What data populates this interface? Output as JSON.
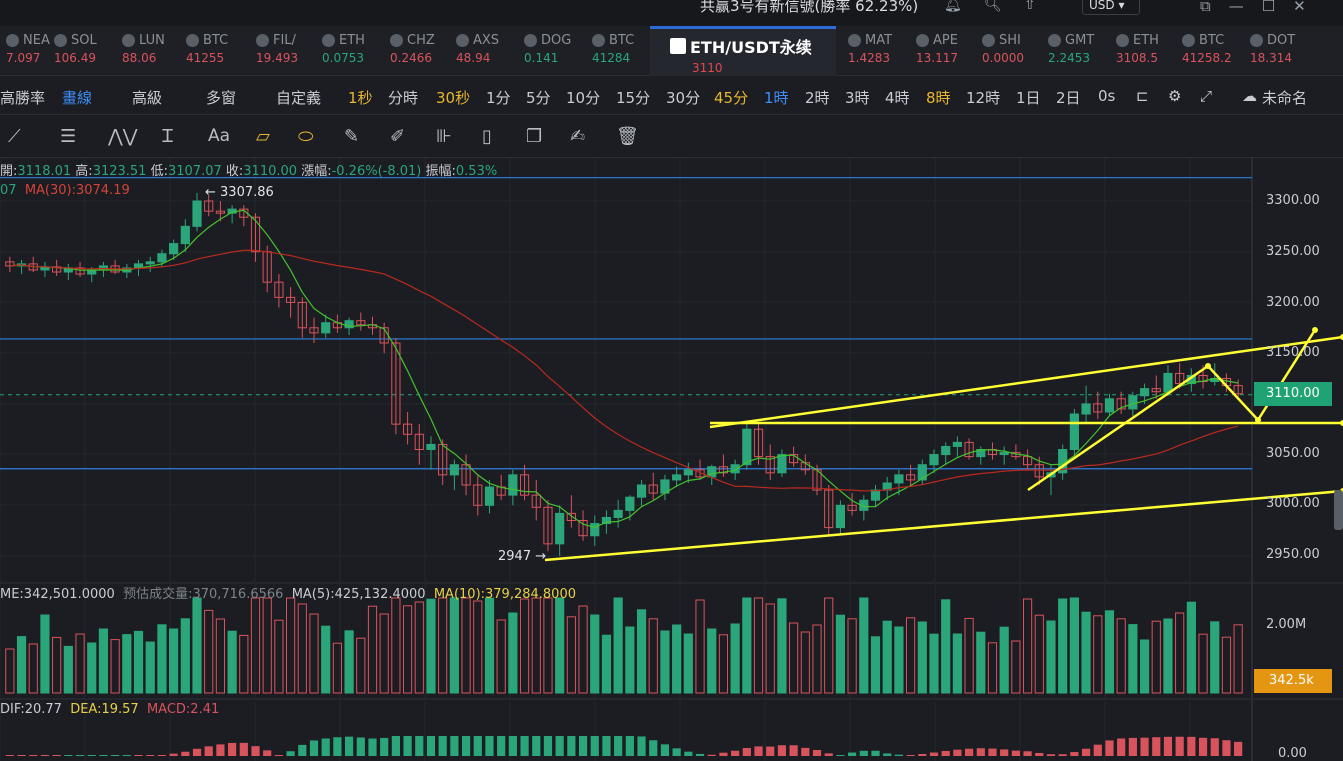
{
  "topbar": {
    "notice": "共赢3号有新信號(勝率 62.23%)",
    "currency": "USD",
    "icons": [
      "bell-icon",
      "search-icon",
      "upload-icon"
    ],
    "window_controls": [
      "popout-icon",
      "minimize-icon",
      "maximize-icon",
      "close-icon"
    ]
  },
  "tickers": [
    {
      "symbol": "NEA",
      "price": "7.097",
      "dir": "dn"
    },
    {
      "symbol": "SOL",
      "price": "106.49",
      "dir": "dn"
    },
    {
      "symbol": "LUN",
      "price": "88.06",
      "dir": "dn"
    },
    {
      "symbol": "BTC",
      "price": "41255",
      "dir": "dn"
    },
    {
      "symbol": "FIL/",
      "price": "19.493",
      "dir": "dn"
    },
    {
      "symbol": "ETH",
      "price": "0.0753",
      "dir": "up"
    },
    {
      "symbol": "CHZ",
      "price": "0.2466",
      "dir": "dn"
    },
    {
      "symbol": "AXS",
      "price": "48.94",
      "dir": "dn"
    },
    {
      "symbol": "DOG",
      "price": "0.141",
      "dir": "up"
    },
    {
      "symbol": "BTC",
      "price": "41284",
      "dir": "up"
    },
    {
      "symbol": "ETH/USDT永续",
      "price": "3110",
      "dir": "dn",
      "active": true
    },
    {
      "symbol": "MAT",
      "price": "1.4283",
      "dir": "dn"
    },
    {
      "symbol": "APE",
      "price": "13.117",
      "dir": "dn"
    },
    {
      "symbol": "SHI",
      "price": "0.0000",
      "dir": "dn"
    },
    {
      "symbol": "GMT",
      "price": "2.2453",
      "dir": "up"
    },
    {
      "symbol": "ETH",
      "price": "3108.5",
      "dir": "dn"
    },
    {
      "symbol": "BTC",
      "price": "41258.2",
      "dir": "dn"
    },
    {
      "symbol": "DOT",
      "price": "18.314",
      "dir": "dn"
    }
  ],
  "timeframe_bar": {
    "items": [
      "高勝率",
      "畫線",
      "高級",
      "多窗",
      "自定義",
      "1秒",
      "分時",
      "30秒",
      "1分",
      "5分",
      "10分",
      "15分",
      "30分",
      "45分",
      "1時",
      "2時",
      "3時",
      "4時",
      "8時",
      "12時",
      "1日",
      "2日",
      "0s",
      "未命名"
    ],
    "selected": "1時",
    "highlighted": [
      "1秒",
      "30秒",
      "45分",
      "8時"
    ]
  },
  "drawing_tools": [
    "line-tool-icon",
    "hlines-tool-icon",
    "wave-tool-icon",
    "text-tool-icon",
    "Aa",
    "ruler-icon",
    "magnet-icon",
    "pencil-icon",
    "brush-icon",
    "measure-icon",
    "lock-icon",
    "copy-icon",
    "edit-icon",
    "trash-icon"
  ],
  "ohlc": {
    "open_label": "開:",
    "open": "3118.01",
    "high_label": "高:",
    "high": "3123.51",
    "low_label": "低:",
    "low": "3107.07",
    "close_label": "收:",
    "close": "3110.00",
    "change_label": "漲幅:",
    "change": "-0.26%(-8.01)",
    "amp_label": "振幅:",
    "amp": "0.53%"
  },
  "ma": {
    "ma_short_value": "07",
    "ma30_label": "MA(30):3074.19"
  },
  "price_markers": {
    "high_marker": "← 3307.86",
    "low_marker": "2947 →"
  },
  "yaxis_labels": [
    "3300.00",
    "3250.00",
    "3200.00",
    "3150.00",
    "3100.00",
    "3050.00",
    "3000.00",
    "2950.00"
  ],
  "last_price": "3110.00",
  "volume": {
    "vol": "ME:342,501.0000",
    "est": "预估成交量:370,716.6566",
    "ma5": "MA(5):425,132.4000",
    "ma10": "MA(10):379,284.8000",
    "axis_label": "2.00M",
    "last": "342.5k"
  },
  "macd": {
    "dif": "DIF:20.77",
    "dea": "DEA:19.57",
    "macd": "MACD:2.41",
    "axis_label": "0.00"
  },
  "colors": {
    "up": "#2aa67a",
    "down": "#d9535c",
    "trend": "#ffff33",
    "level": "#2f7fe0",
    "ma_short": "#44c22e",
    "ma30": "#b8291f"
  },
  "chart_data": {
    "type": "candlestick",
    "ylim": [
      2900,
      3330
    ],
    "candles": [
      [
        3240,
        3245,
        3230,
        3236
      ],
      [
        3236,
        3242,
        3228,
        3238
      ],
      [
        3238,
        3245,
        3230,
        3232
      ],
      [
        3232,
        3240,
        3225,
        3235
      ],
      [
        3235,
        3242,
        3226,
        3230
      ],
      [
        3230,
        3238,
        3222,
        3234
      ],
      [
        3234,
        3240,
        3225,
        3228
      ],
      [
        3228,
        3235,
        3220,
        3232
      ],
      [
        3232,
        3240,
        3225,
        3236
      ],
      [
        3236,
        3242,
        3228,
        3230
      ],
      [
        3230,
        3238,
        3224,
        3234
      ],
      [
        3234,
        3242,
        3226,
        3238
      ],
      [
        3238,
        3245,
        3230,
        3240
      ],
      [
        3240,
        3252,
        3235,
        3248
      ],
      [
        3248,
        3262,
        3242,
        3258
      ],
      [
        3258,
        3282,
        3250,
        3275
      ],
      [
        3275,
        3308,
        3270,
        3300
      ],
      [
        3300,
        3306,
        3285,
        3290
      ],
      [
        3290,
        3300,
        3280,
        3288
      ],
      [
        3288,
        3296,
        3278,
        3292
      ],
      [
        3292,
        3296,
        3275,
        3284
      ],
      [
        3284,
        3288,
        3240,
        3250
      ],
      [
        3250,
        3256,
        3210,
        3220
      ],
      [
        3220,
        3228,
        3195,
        3205
      ],
      [
        3205,
        3215,
        3185,
        3200
      ],
      [
        3200,
        3205,
        3165,
        3175
      ],
      [
        3175,
        3185,
        3160,
        3170
      ],
      [
        3170,
        3188,
        3165,
        3180
      ],
      [
        3180,
        3188,
        3170,
        3175
      ],
      [
        3175,
        3185,
        3168,
        3182
      ],
      [
        3182,
        3190,
        3172,
        3178
      ],
      [
        3178,
        3186,
        3168,
        3175
      ],
      [
        3175,
        3180,
        3150,
        3160
      ],
      [
        3160,
        3165,
        3070,
        3080
      ],
      [
        3080,
        3092,
        3060,
        3070
      ],
      [
        3070,
        3080,
        3040,
        3055
      ],
      [
        3055,
        3068,
        3035,
        3060
      ],
      [
        3060,
        3065,
        3020,
        3030
      ],
      [
        3030,
        3045,
        3015,
        3040
      ],
      [
        3040,
        3050,
        3010,
        3020
      ],
      [
        3020,
        3030,
        2990,
        3000
      ],
      [
        3000,
        3025,
        2992,
        3018
      ],
      [
        3018,
        3030,
        3005,
        3010
      ],
      [
        3010,
        3035,
        3000,
        3030
      ],
      [
        3030,
        3040,
        3005,
        3010
      ],
      [
        3010,
        3025,
        2985,
        2998
      ],
      [
        2998,
        3005,
        2955,
        2962
      ],
      [
        2962,
        3000,
        2950,
        2992
      ],
      [
        2992,
        3010,
        2978,
        2985
      ],
      [
        2985,
        2995,
        2965,
        2970
      ],
      [
        2970,
        2990,
        2960,
        2982
      ],
      [
        2982,
        2995,
        2972,
        2988
      ],
      [
        2988,
        3005,
        2978,
        2995
      ],
      [
        2995,
        3010,
        2985,
        3008
      ],
      [
        3008,
        3025,
        2998,
        3020
      ],
      [
        3020,
        3032,
        3005,
        3012
      ],
      [
        3012,
        3030,
        3005,
        3025
      ],
      [
        3025,
        3038,
        3018,
        3030
      ],
      [
        3030,
        3042,
        3022,
        3035
      ],
      [
        3035,
        3045,
        3025,
        3028
      ],
      [
        3028,
        3040,
        3020,
        3038
      ],
      [
        3038,
        3050,
        3028,
        3032
      ],
      [
        3032,
        3045,
        3025,
        3040
      ],
      [
        3040,
        3080,
        3035,
        3075
      ],
      [
        3075,
        3082,
        3040,
        3048
      ],
      [
        3048,
        3060,
        3025,
        3032
      ],
      [
        3032,
        3055,
        3028,
        3050
      ],
      [
        3050,
        3058,
        3038,
        3042
      ],
      [
        3042,
        3050,
        3030,
        3035
      ],
      [
        3035,
        3040,
        3010,
        3015
      ],
      [
        3015,
        3020,
        2970,
        2978
      ],
      [
        2978,
        3005,
        2972,
        3000
      ],
      [
        3000,
        3012,
        2990,
        2995
      ],
      [
        2995,
        3010,
        2985,
        3005
      ],
      [
        3005,
        3020,
        2998,
        3015
      ],
      [
        3015,
        3028,
        3005,
        3022
      ],
      [
        3022,
        3035,
        3010,
        3030
      ],
      [
        3030,
        3040,
        3018,
        3025
      ],
      [
        3025,
        3045,
        3020,
        3040
      ],
      [
        3040,
        3055,
        3032,
        3050
      ],
      [
        3050,
        3062,
        3040,
        3058
      ],
      [
        3058,
        3068,
        3048,
        3062
      ],
      [
        3062,
        3066,
        3045,
        3048
      ],
      [
        3048,
        3058,
        3040,
        3055
      ],
      [
        3055,
        3062,
        3045,
        3050
      ],
      [
        3050,
        3058,
        3040,
        3052
      ],
      [
        3052,
        3060,
        3045,
        3048
      ],
      [
        3048,
        3055,
        3035,
        3040
      ],
      [
        3040,
        3048,
        3020,
        3028
      ],
      [
        3028,
        3040,
        3010,
        3032
      ],
      [
        3032,
        3060,
        3025,
        3055
      ],
      [
        3055,
        3095,
        3050,
        3090
      ],
      [
        3090,
        3118,
        3080,
        3100
      ],
      [
        3100,
        3112,
        3085,
        3092
      ],
      [
        3092,
        3110,
        3088,
        3105
      ],
      [
        3105,
        3112,
        3090,
        3095
      ],
      [
        3095,
        3112,
        3088,
        3108
      ],
      [
        3108,
        3120,
        3100,
        3115
      ],
      [
        3115,
        3128,
        3105,
        3112
      ],
      [
        3112,
        3138,
        3108,
        3130
      ],
      [
        3130,
        3140,
        3115,
        3120
      ],
      [
        3120,
        3135,
        3112,
        3128
      ],
      [
        3128,
        3138,
        3115,
        3122
      ],
      [
        3122,
        3140,
        3118,
        3125
      ],
      [
        3125,
        3130,
        3112,
        3118
      ],
      [
        3118,
        3124,
        3107,
        3110
      ]
    ],
    "h_levels": [
      3323,
      3164,
      3036
    ],
    "dashed_level": 3109
  }
}
